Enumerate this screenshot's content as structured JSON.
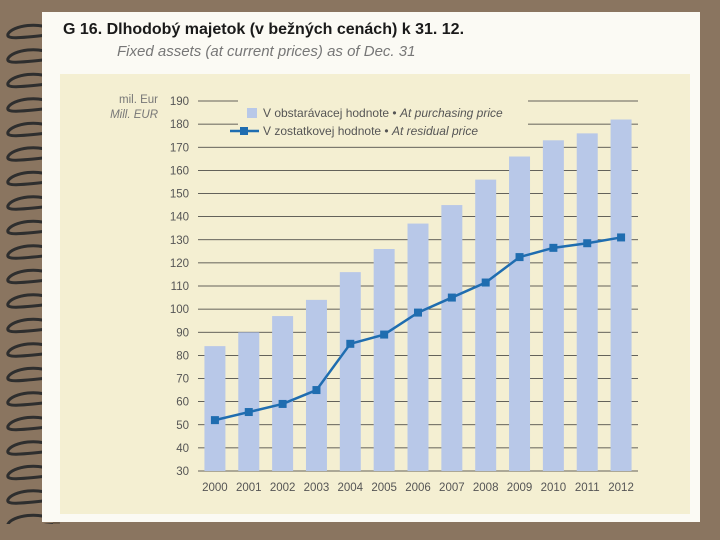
{
  "title": "G 16.  Dlhodobý majetok (v bežných cenách) k 31. 12.",
  "subtitle": "Fixed assets (at current prices) as of Dec. 31",
  "colors": {
    "bar": "#b8c8e8",
    "line": "#1f6db0",
    "background": "#f4efd2",
    "paper": "#fbfaf4",
    "grid": "#333333"
  },
  "chart_data": {
    "type": "bar",
    "title": "G 16.  Dlhodobý majetok (v bežných cenách) k 31. 12.",
    "subtitle": "Fixed assets (at current prices) as of Dec. 31",
    "ylabel": "mil. Eur",
    "ylabel_en": "Mill. EUR",
    "xlabel": "",
    "ylim": [
      30,
      190
    ],
    "yticks": [
      30,
      40,
      50,
      60,
      70,
      80,
      90,
      100,
      110,
      120,
      130,
      140,
      150,
      160,
      170,
      180,
      190
    ],
    "grid": true,
    "legend_position": "top",
    "categories": [
      "2000",
      "2001",
      "2002",
      "2003",
      "2004",
      "2005",
      "2006",
      "2007",
      "2008",
      "2009",
      "2010",
      "2011",
      "2012"
    ],
    "series": [
      {
        "name": "V obstarávacej hodnote • At purchasing price",
        "name_sk": "V obstarávacej hodnote",
        "name_en": "At purchasing price",
        "type": "bar",
        "values": [
          84,
          90,
          97,
          104,
          116,
          126,
          137,
          145,
          156,
          166,
          173,
          176,
          182
        ]
      },
      {
        "name": "V zostatkovej hodnote • At residual price",
        "name_sk": "V zostatkovej hodnote",
        "name_en": "At residual price",
        "type": "line",
        "values": [
          52,
          55.5,
          59,
          65,
          85,
          89,
          98.5,
          105,
          111.5,
          122.5,
          126.5,
          128.5,
          131
        ]
      }
    ]
  }
}
